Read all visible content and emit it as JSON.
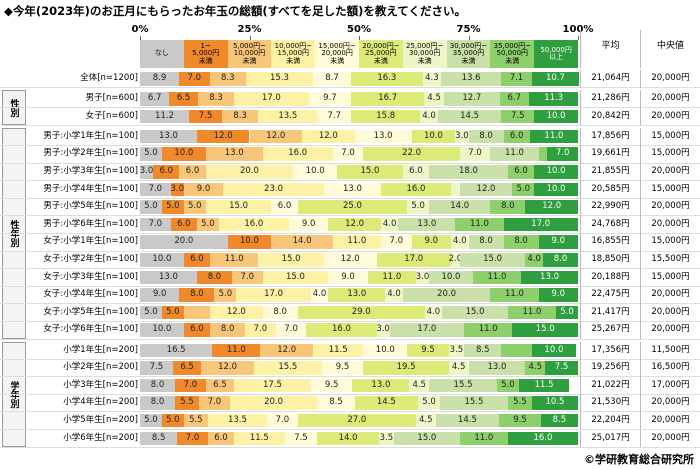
{
  "chart_data": {
    "type": "bar",
    "orientation": "horizontal",
    "stacked": true,
    "title": "◆今年(2023年)のお正月にもらったお年玉の総額(すべてを足した額)を教えてください。",
    "source": "©学研教育総合研究所",
    "group_labels": [
      "性別",
      "性年別",
      "学年別"
    ],
    "categories": [
      "全体[n=1200]",
      "男子[n=600]",
      "女子[n=600]",
      "男子:小学1年生[n=100]",
      "男子:小学2年生[n=100]",
      "男子:小学3年生[n=100]",
      "男子:小学4年生[n=100]",
      "男子:小学5年生[n=100]",
      "男子:小学6年生[n=100]",
      "女子:小学1年生[n=100]",
      "女子:小学2年生[n=100]",
      "女子:小学3年生[n=100]",
      "女子:小学4年生[n=100]",
      "女子:小学5年生[n=100]",
      "女子:小学6年生[n=100]",
      "小学1年生[n=200]",
      "小学2年生[n=200]",
      "小学3年生[n=200]",
      "小学4年生[n=200]",
      "小学5年生[n=200]",
      "小学6年生[n=200]"
    ],
    "xlim": [
      0,
      100
    ],
    "xticks": [
      {
        "value": 0,
        "label": "0%"
      },
      {
        "value": 25,
        "label": "25%"
      },
      {
        "value": 50,
        "label": "50%"
      },
      {
        "value": 75,
        "label": "75%"
      },
      {
        "value": 100,
        "label": "100%"
      }
    ],
    "series": [
      {
        "name": "なし",
        "color": "#c9c9c9",
        "values": [
          8.9,
          6.7,
          11.2,
          13,
          5,
          3,
          7,
          5,
          7,
          20,
          10,
          13,
          9,
          5,
          10,
          16.5,
          7.5,
          8,
          8,
          5,
          8.5
        ],
        "value_labels": [
          "8.9",
          "6.7",
          "11.2",
          "13.0",
          "5.0",
          "3.0",
          "7.0",
          "5.0",
          "7.0",
          "20.0",
          "10.0",
          "13.0",
          "9.0",
          "5.0",
          "10.0",
          "16.5",
          "7.5",
          "8.0",
          "8.0",
          "5.0",
          "8.5"
        ]
      },
      {
        "name": "1~\n5,000円\n未満",
        "color": "#f0892a",
        "values": [
          7,
          6.5,
          7.5,
          12,
          10,
          6,
          3,
          5,
          6,
          10,
          6,
          8,
          8,
          5,
          6,
          11,
          6.5,
          7,
          5.5,
          5,
          7
        ],
        "value_labels": [
          "7.0",
          "6.5",
          "7.5",
          "12.0",
          "10.0",
          "6.0",
          "3.0",
          "5.0",
          "6.0",
          "10.0",
          "6.0",
          "8.0",
          "8.0",
          "5.0",
          "6.0",
          "11.0",
          "6.5",
          "7.0",
          "5.5",
          "5.0",
          "7.0"
        ]
      },
      {
        "name": "5,000円~\n10,000円\n未満",
        "color": "#f8c679",
        "values": [
          8.3,
          8.3,
          8.3,
          12,
          13,
          6,
          9,
          5,
          5,
          14,
          11,
          7,
          5,
          6,
          8,
          12,
          12,
          6.5,
          7,
          5.5,
          6
        ],
        "value_labels": [
          "8.3",
          "8.3",
          "8.3",
          "12.0",
          "13.0",
          "6.0",
          "9.0",
          "5.0",
          "5.0",
          "14.0",
          "11.0",
          "7.0",
          "5.0",
          null,
          "8.0",
          "12.0",
          "12.0",
          "6.5",
          "7.0",
          "5.5",
          "6.0"
        ]
      },
      {
        "name": "10,000円~\n15,000円\n未満",
        "color": "#fcf1a4",
        "values": [
          15.3,
          17,
          13.5,
          12,
          16,
          20,
          23,
          15,
          16,
          11,
          15,
          15,
          17,
          12,
          7,
          11.5,
          15.5,
          17.5,
          20,
          13.5,
          11.5
        ],
        "value_labels": [
          "15.3",
          "17.0",
          "13.5",
          "12.0",
          "16.0",
          "20.0",
          "23.0",
          "15.0",
          "16.0",
          "11.0",
          "15.0",
          "15.0",
          "17.0",
          "12.0",
          "7.0",
          "11.5",
          "15.5",
          "17.5",
          "20.0",
          "13.5",
          "11.5"
        ]
      },
      {
        "name": "15,000円~\n20,000円\n未満",
        "color": "#fffbd8",
        "values": [
          8.7,
          9.7,
          7.7,
          13,
          7,
          10,
          13,
          6,
          9,
          7,
          12,
          9,
          4,
          8,
          7,
          10,
          9.5,
          9.5,
          8.5,
          7,
          7.5
        ],
        "value_labels": [
          "8.7",
          "9.7",
          "7.7",
          "13.0",
          "7.0",
          "10.0",
          "13.0",
          "6.0",
          "9.0",
          "7.0",
          "12.0",
          "9.0",
          "4.0",
          "8.0",
          "7.0",
          "10.0",
          "9.5",
          "9.5",
          "8.5",
          "7.0",
          "7.5"
        ]
      },
      {
        "name": "20,000円~\n25,000円\n未満",
        "color": "#dcea78",
        "values": [
          16.3,
          16.7,
          15.8,
          10,
          22,
          15,
          16,
          25,
          12,
          9,
          17,
          11,
          13,
          29,
          16,
          9.5,
          19.5,
          13,
          14.5,
          27,
          14
        ],
        "value_labels": [
          "16.3",
          "16.7",
          "15.8",
          "10.0",
          "22.0",
          "15.0",
          "16.0",
          "25.0",
          "12.0",
          "9.0",
          "17.0",
          "11.0",
          "13.0",
          "29.0",
          "16.0",
          "9.5",
          "19.5",
          "13.0",
          "14.5",
          "27.0",
          "14.0"
        ]
      },
      {
        "name": "25,000円~\n30,000円\n未満",
        "color": "#eef6c8",
        "values": [
          4.3,
          4.5,
          4,
          3,
          7,
          6,
          2,
          5,
          4,
          4,
          2,
          3,
          4,
          4,
          3,
          3.5,
          4.5,
          4.5,
          5,
          4.5,
          3.5
        ],
        "value_labels": [
          "4.3",
          "4.5",
          "4.0",
          "3.0",
          "7.0",
          "6.0",
          null,
          "5.0",
          "4.0",
          "4.0",
          "2.0",
          "3.0",
          "4.0",
          "4.0",
          "3.0",
          "3.5",
          "4.5",
          "4.5",
          "5.0",
          "4.5",
          "3.5"
        ]
      },
      {
        "name": "30,000円~\n35,000円\n未満",
        "color": "#c9e1a9",
        "values": [
          13.6,
          12.7,
          14.5,
          8,
          11,
          18,
          12,
          14,
          13,
          8,
          15,
          10,
          20,
          15,
          17,
          8.5,
          13,
          15.5,
          15.5,
          14.5,
          15
        ],
        "value_labels": [
          "13.6",
          "12.7",
          "14.5",
          "8.0",
          "11.0",
          "18.0",
          "12.0",
          "14.0",
          "13.0",
          "8.0",
          "15.0",
          "10.0",
          "20.0",
          "15.0",
          "17.0",
          "8.5",
          "13.0",
          "15.5",
          "15.5",
          "14.5",
          "15.0"
        ]
      },
      {
        "name": "35,000円~\n50,000円\n未満",
        "color": "#8dcf6b",
        "values": [
          7.1,
          6.7,
          7.5,
          6,
          2,
          6,
          5,
          8,
          11,
          8,
          4,
          11,
          11,
          11,
          11,
          7,
          4.5,
          5,
          5.5,
          9.5,
          11
        ],
        "value_labels": [
          "7.1",
          "6.7",
          "7.5",
          "6.0",
          null,
          "6.0",
          "5.0",
          "8.0",
          "11.0",
          "8.0",
          "4.0",
          "11.0",
          "11.0",
          "11.0",
          "11.0",
          null,
          "4.5",
          "5.0",
          "5.5",
          "9.5",
          "11.0"
        ]
      },
      {
        "name": "50,000円\n以上",
        "color": "#2f9e3f",
        "values": [
          10.7,
          11.3,
          10,
          11,
          7,
          10,
          10,
          12,
          17,
          9,
          8,
          13,
          9,
          5,
          15,
          10,
          7.5,
          11.5,
          10.5,
          8.5,
          16
        ],
        "value_labels": [
          "10.7",
          "11.3",
          "10.0",
          "11.0",
          "7.0",
          "10.0",
          "10.0",
          "12.0",
          "17.0",
          "9.0",
          "8.0",
          "13.0",
          "9.0",
          "5.0",
          "15.0",
          "10.0",
          "7.5",
          "11.5",
          "10.5",
          "8.5",
          "16.0"
        ]
      }
    ],
    "table": {
      "headers": [
        "平均",
        "中央値"
      ],
      "mean": [
        "21,064円",
        "21,286円",
        "20,842円",
        "17,856円",
        "19,661円",
        "21,855円",
        "20,585円",
        "22,990円",
        "24,768円",
        "16,855円",
        "18,850円",
        "20,188円",
        "22,475円",
        "21,417円",
        "25,267円",
        "17,356円",
        "19,256円",
        "21,022円",
        "21,530円",
        "22,204円",
        "25,017円"
      ],
      "median": [
        "20,000円",
        "20,000円",
        "20,000円",
        "15,000円",
        "15,000円",
        "20,000円",
        "15,000円",
        "20,000円",
        "20,000円",
        "15,000円",
        "15,500円",
        "15,000円",
        "20,000円",
        "20,000円",
        "20,000円",
        "11,500円",
        "16,500円",
        "17,000円",
        "20,000円",
        "20,000円",
        "20,000円"
      ]
    }
  }
}
